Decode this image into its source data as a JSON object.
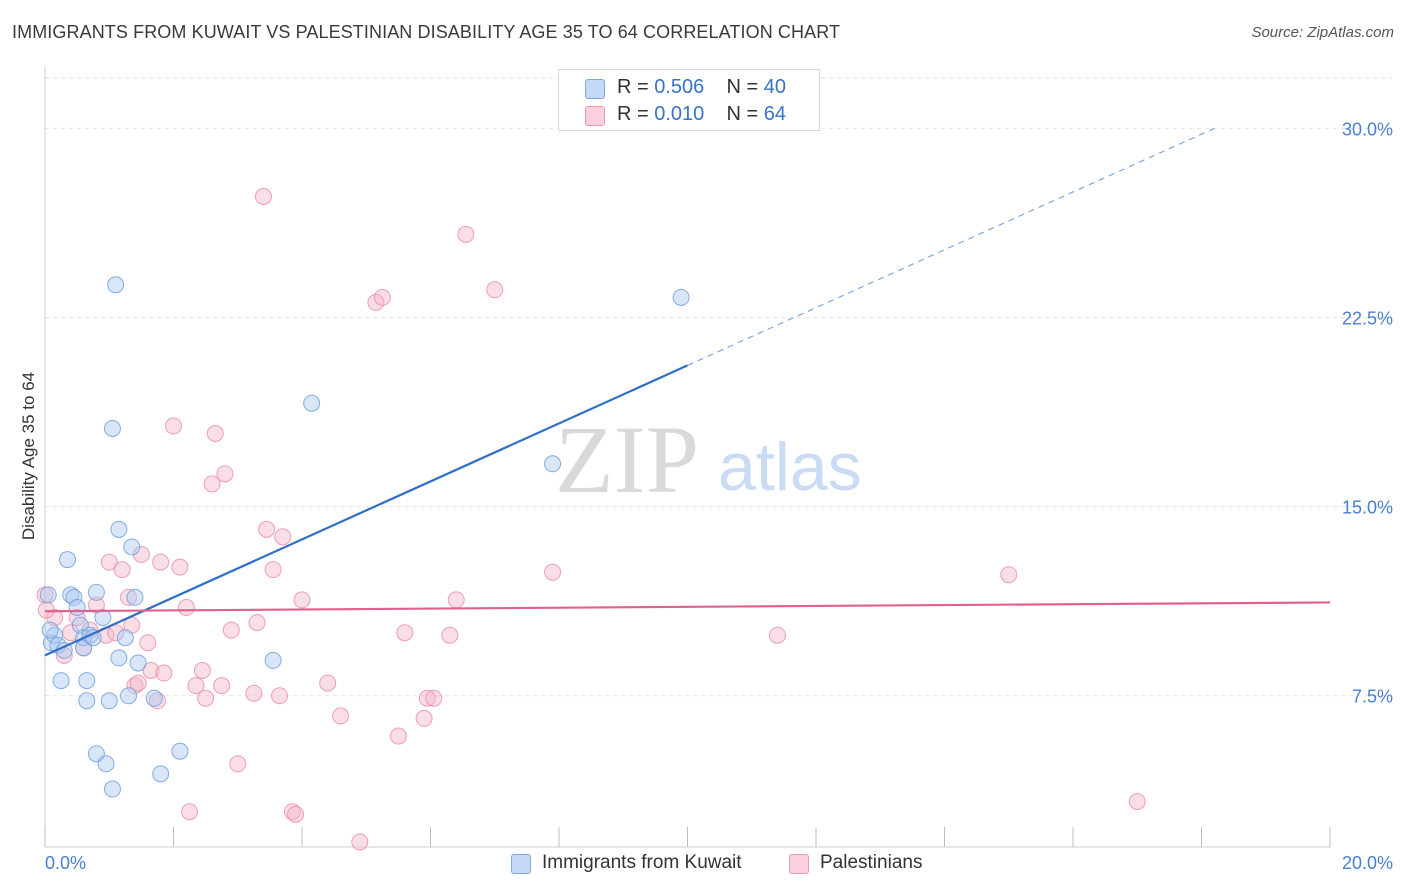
{
  "title": "IMMIGRANTS FROM KUWAIT VS PALESTINIAN DISABILITY AGE 35 TO 64 CORRELATION CHART",
  "source": "Source: ZipAtlas.com",
  "watermark": {
    "zip": "ZIP",
    "atlas": "atlas"
  },
  "legend": {
    "rows": [
      {
        "r_label": "R =",
        "r_value": "0.506",
        "n_label": "N =",
        "n_value": "40",
        "color": "#aac8f0"
      },
      {
        "r_label": "R =",
        "r_value": "0.010",
        "n_label": "N =",
        "n_value": "64",
        "color": "#f5b6c8"
      }
    ]
  },
  "bottom_legend": [
    {
      "label": "Immigrants from Kuwait",
      "color": "#aac8f0"
    },
    {
      "label": "Palestinians",
      "color": "#f5b6c8"
    }
  ],
  "chart_data": {
    "type": "scatter",
    "title": "IMMIGRANTS FROM KUWAIT VS PALESTINIAN DISABILITY AGE 35 TO 64 CORRELATION CHART",
    "xlabel": "",
    "ylabel": "Disability Age 35 to 64",
    "xlim": [
      0,
      20
    ],
    "ylim": [
      1.5,
      32
    ],
    "x_tick_labels": [
      {
        "value": 0,
        "label": "0.0%"
      },
      {
        "value": 20,
        "label": "20.0%"
      }
    ],
    "y_ticks": [
      {
        "value": 7.5,
        "label": "7.5%"
      },
      {
        "value": 15,
        "label": "15.0%"
      },
      {
        "value": 22.5,
        "label": "22.5%"
      },
      {
        "value": 30,
        "label": "30.0%"
      }
    ],
    "x_minor_ticks": [
      0,
      2,
      4,
      6,
      8,
      10,
      12,
      14,
      16,
      18,
      20
    ],
    "grid": "horizontal dashed",
    "legend_position": "top-center",
    "series": [
      {
        "name": "Immigrants from Kuwait",
        "color": "#6fa0e0",
        "fill": "#aac8f0",
        "trend": {
          "x0": 0,
          "y0": 9.1,
          "x1": 10.0,
          "y1": 20.6,
          "dashed_to_x": 18.2,
          "dashed_to_y": 30.0,
          "color": "#2f6fca"
        },
        "points": [
          [
            0.1,
            9.6
          ],
          [
            0.15,
            9.9
          ],
          [
            0.2,
            9.5
          ],
          [
            0.25,
            8.1
          ],
          [
            0.3,
            9.3
          ],
          [
            0.35,
            12.9
          ],
          [
            0.4,
            11.5
          ],
          [
            0.45,
            11.4
          ],
          [
            0.5,
            11.0
          ],
          [
            0.55,
            10.3
          ],
          [
            0.6,
            9.8
          ],
          [
            0.6,
            9.4
          ],
          [
            0.65,
            7.3
          ],
          [
            0.65,
            8.1
          ],
          [
            0.7,
            9.9
          ],
          [
            0.75,
            9.8
          ],
          [
            0.8,
            11.6
          ],
          [
            0.8,
            5.2
          ],
          [
            0.9,
            10.6
          ],
          [
            0.95,
            4.8
          ],
          [
            1.0,
            7.3
          ],
          [
            1.05,
            18.1
          ],
          [
            1.05,
            3.8
          ],
          [
            1.1,
            23.8
          ],
          [
            1.15,
            14.1
          ],
          [
            1.15,
            9.0
          ],
          [
            1.25,
            9.8
          ],
          [
            1.3,
            7.5
          ],
          [
            1.35,
            13.4
          ],
          [
            1.4,
            11.4
          ],
          [
            1.45,
            8.8
          ],
          [
            1.7,
            7.4
          ],
          [
            1.8,
            4.4
          ],
          [
            2.1,
            5.3
          ],
          [
            3.55,
            8.9
          ],
          [
            4.15,
            19.1
          ],
          [
            7.9,
            16.7
          ],
          [
            9.9,
            23.3
          ],
          [
            0.05,
            11.5
          ],
          [
            0.08,
            10.1
          ]
        ]
      },
      {
        "name": "Palestinians",
        "color": "#e88aa8",
        "fill": "#f5b6c8",
        "trend": {
          "x0": 0,
          "y0": 10.85,
          "x1": 20.0,
          "y1": 11.2,
          "color": "#e0608e"
        },
        "points": [
          [
            0.0,
            11.5
          ],
          [
            0.15,
            10.6
          ],
          [
            0.3,
            9.1
          ],
          [
            0.4,
            10.0
          ],
          [
            0.5,
            10.6
          ],
          [
            0.6,
            9.4
          ],
          [
            0.7,
            10.1
          ],
          [
            0.8,
            11.1
          ],
          [
            0.95,
            9.9
          ],
          [
            1.0,
            12.8
          ],
          [
            1.1,
            10.0
          ],
          [
            1.2,
            12.5
          ],
          [
            1.3,
            11.4
          ],
          [
            1.35,
            10.3
          ],
          [
            1.4,
            7.9
          ],
          [
            1.45,
            8.0
          ],
          [
            1.5,
            13.1
          ],
          [
            1.6,
            9.6
          ],
          [
            1.65,
            8.5
          ],
          [
            1.75,
            7.3
          ],
          [
            1.8,
            12.8
          ],
          [
            1.85,
            8.4
          ],
          [
            2.0,
            18.2
          ],
          [
            2.1,
            12.6
          ],
          [
            2.2,
            11.0
          ],
          [
            2.25,
            2.9
          ],
          [
            2.35,
            7.9
          ],
          [
            2.45,
            8.5
          ],
          [
            2.5,
            7.4
          ],
          [
            2.6,
            15.9
          ],
          [
            2.65,
            17.9
          ],
          [
            2.75,
            7.9
          ],
          [
            2.8,
            16.3
          ],
          [
            2.9,
            10.1
          ],
          [
            3.0,
            4.8
          ],
          [
            3.25,
            7.6
          ],
          [
            3.3,
            10.4
          ],
          [
            3.4,
            27.3
          ],
          [
            3.45,
            14.1
          ],
          [
            3.55,
            12.5
          ],
          [
            3.65,
            7.5
          ],
          [
            3.7,
            13.8
          ],
          [
            3.85,
            2.9
          ],
          [
            3.9,
            2.8
          ],
          [
            4.0,
            11.3
          ],
          [
            4.4,
            8.0
          ],
          [
            4.6,
            6.7
          ],
          [
            4.9,
            1.7
          ],
          [
            5.15,
            23.1
          ],
          [
            5.25,
            23.3
          ],
          [
            5.5,
            5.9
          ],
          [
            5.6,
            10.0
          ],
          [
            5.9,
            6.6
          ],
          [
            5.95,
            7.4
          ],
          [
            6.05,
            7.4
          ],
          [
            6.3,
            9.9
          ],
          [
            6.4,
            11.3
          ],
          [
            6.55,
            25.8
          ],
          [
            7.0,
            23.6
          ],
          [
            7.9,
            12.4
          ],
          [
            11.4,
            9.9
          ],
          [
            15.0,
            12.3
          ],
          [
            17.0,
            3.3
          ],
          [
            0.02,
            10.9
          ]
        ]
      }
    ]
  }
}
